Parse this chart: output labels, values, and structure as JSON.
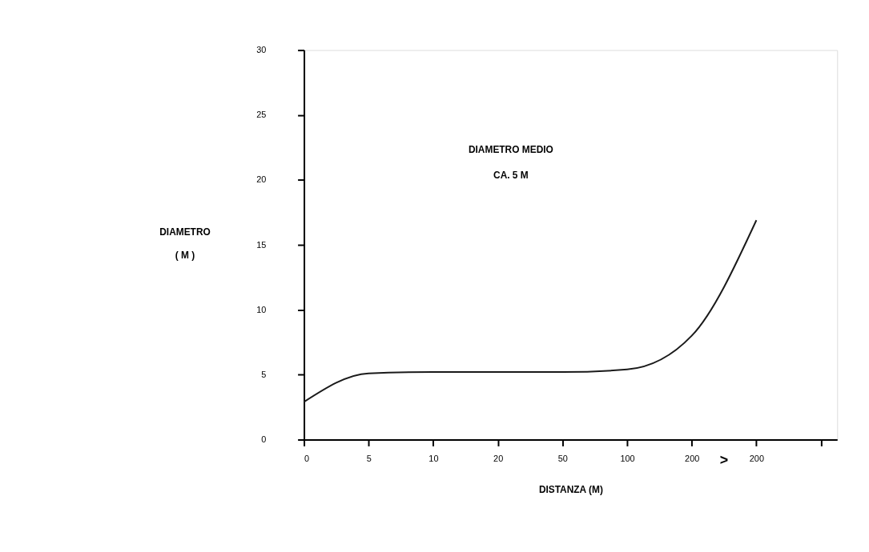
{
  "chart_data": {
    "type": "line",
    "xlabel": "DISTANZA (M)",
    "ylabel": "DIAMETRO\n( M )",
    "annotations": [
      "DIAMETRO MEDIO\nCA. 5 M",
      ">"
    ],
    "categories": [
      "0",
      "5",
      "10",
      "20",
      "50",
      "100",
      "200",
      "200",
      null
    ],
    "series": [
      {
        "color": "#1a1a1a",
        "values": [
          2.9,
          5.1,
          5.2,
          5.2,
          5.2,
          5.4,
          8.0,
          16.9,
          null
        ]
      }
    ],
    "ylim": [
      0,
      30
    ],
    "yticks": [
      0,
      5,
      10,
      15,
      20,
      25,
      30
    ],
    "grid": false,
    "legend": false,
    "marker": "none",
    "line_style": "solid"
  }
}
